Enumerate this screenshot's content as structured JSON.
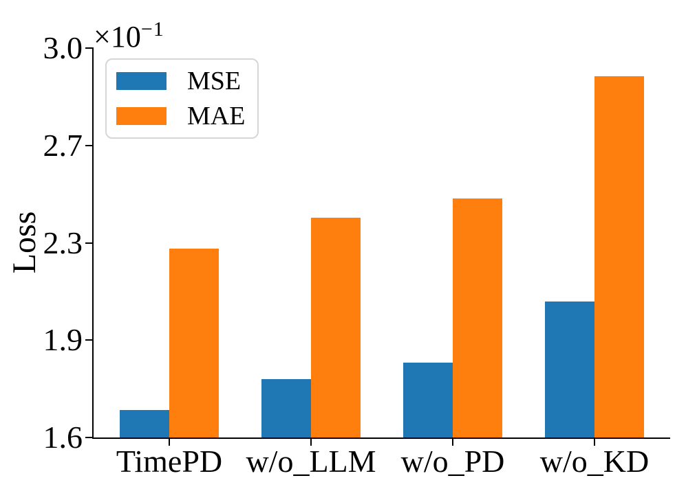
{
  "figure": {
    "background": "#ffffff",
    "offset_text": {
      "base": "×10",
      "exponent": "−1"
    }
  },
  "chart_data": {
    "type": "bar",
    "title": "",
    "xlabel": "",
    "ylabel": "Loss",
    "y_unit_multiplier": "×10⁻¹",
    "categories": [
      "TimePD",
      "w/o_LLM",
      "w/o_PD",
      "w/o_KD"
    ],
    "series": [
      {
        "name": "MSE",
        "color": "#1f77b4",
        "values": [
          1.7,
          1.81,
          1.87,
          2.09
        ]
      },
      {
        "name": "MAE",
        "color": "#ff7f0e",
        "values": [
          2.28,
          2.39,
          2.46,
          2.9
        ]
      }
    ],
    "values_note": "axis values are in units of 10^-1 (e.g. 1.70 means 0.170)",
    "ylim": [
      1.6,
      3.0
    ],
    "yticks": {
      "positions": [
        1.6,
        1.95,
        2.3,
        2.65,
        3.0
      ],
      "labels": [
        "1.6",
        "1.9",
        "2.3",
        "2.7",
        "3.0"
      ]
    },
    "grid": false,
    "legend_position": "upper left"
  }
}
